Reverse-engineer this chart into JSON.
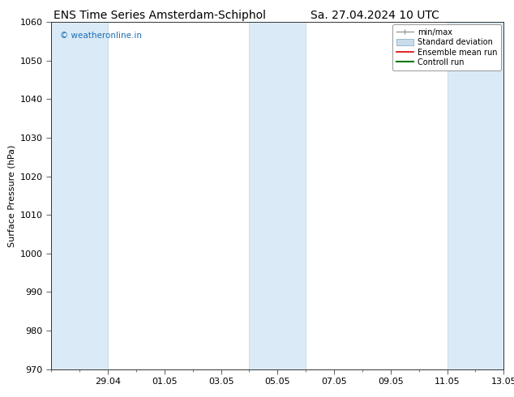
{
  "title_left": "ENS Time Series Amsterdam-Schiphol",
  "title_right": "Sa. 27.04.2024 10 UTC",
  "ylabel": "Surface Pressure (hPa)",
  "ylim": [
    970,
    1060
  ],
  "yticks": [
    970,
    980,
    990,
    1000,
    1010,
    1020,
    1030,
    1040,
    1050,
    1060
  ],
  "xtick_labels": [
    "29.04",
    "01.05",
    "03.05",
    "05.05",
    "07.05",
    "09.05",
    "11.05",
    "13.05"
  ],
  "shaded_band_color": "#daeaf7",
  "shaded_band_edge_color": "#b8d4ea",
  "background_color": "#ffffff",
  "watermark_text": "© weatheronline.in",
  "watermark_color": "#1a6eb5",
  "legend_labels": [
    "min/max",
    "Standard deviation",
    "Ensemble mean run",
    "Controll run"
  ],
  "title_fontsize": 10,
  "axis_fontsize": 8,
  "tick_fontsize": 8,
  "shaded_periods": [
    [
      "2024-04-27",
      "2024-04-29"
    ],
    [
      "2024-05-04",
      "2024-05-06"
    ],
    [
      "2024-05-11",
      "2024-05-13"
    ]
  ],
  "xtick_dates": [
    "2024-04-29",
    "2024-05-01",
    "2024-05-03",
    "2024-05-05",
    "2024-05-07",
    "2024-05-09",
    "2024-05-11",
    "2024-05-13"
  ],
  "xstart": "2024-04-27",
  "xend": "2024-05-13"
}
